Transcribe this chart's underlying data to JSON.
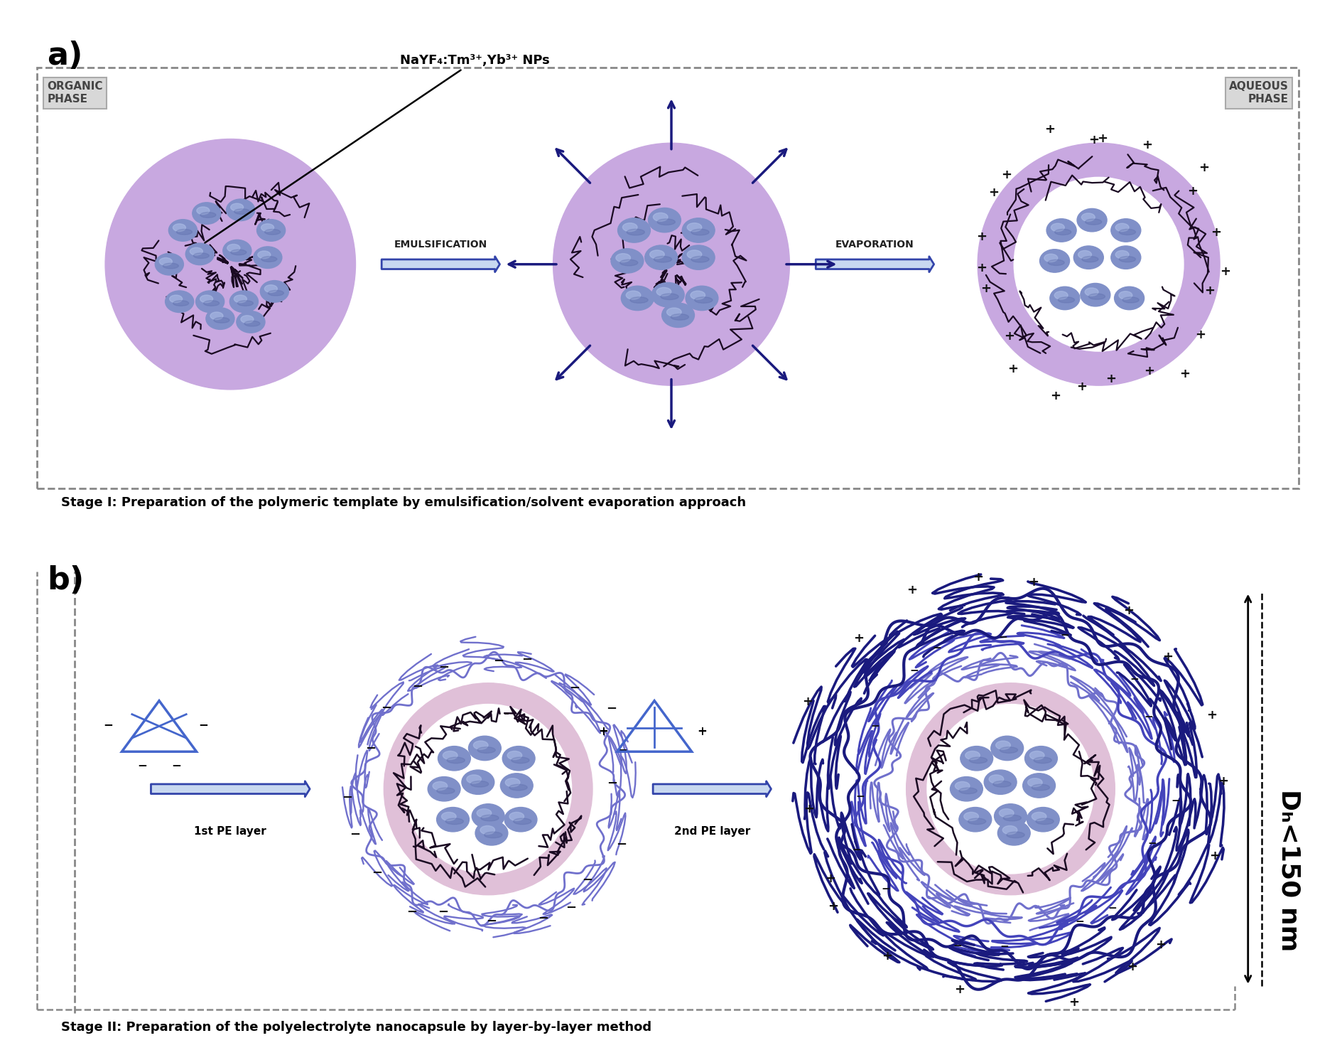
{
  "bg_color": "#ffffff",
  "purple_fill": "#c8a8e0",
  "pink_ring": "#e0c0d8",
  "blue_np_main": "#8090c8",
  "blue_np_light": "#b0c0e8",
  "blue_np_dark": "#5060a0",
  "polymer_color": "#1a0a22",
  "arrow_fill": "#c8d8f0",
  "arrow_edge": "#3344aa",
  "navy_blue": "#1a1a7e",
  "medium_blue": "#4444bb",
  "light_blue_layer": "#7070cc",
  "charge_color": "#111111",
  "gray_box": "#d8d8d8",
  "gray_box_edge": "#aaaaaa",
  "dashed_line": "#888888",
  "label_a": "a)",
  "label_b": "b)",
  "organic_phase": "ORGANIC\nPHASE",
  "aqueous_phase": "AQUEOUS\nPHASE",
  "emulsification": "EMULSIFICATION",
  "evaporation": "EVAPORATION",
  "nayf4_label": "NaYF₄:Tm³⁺,Yb³⁺ NPs",
  "pe1_label": "1st PE layer",
  "pe2_label": "2nd PE layer",
  "dh_label": "Dₕ<150 nm",
  "stage1_label": "Stage I: Preparation of the polymeric template by emulsification/solvent evaporation approach",
  "stage2_label": "Stage II: Preparation of the polyelectrolyte nanocapsule by layer-by-layer method"
}
